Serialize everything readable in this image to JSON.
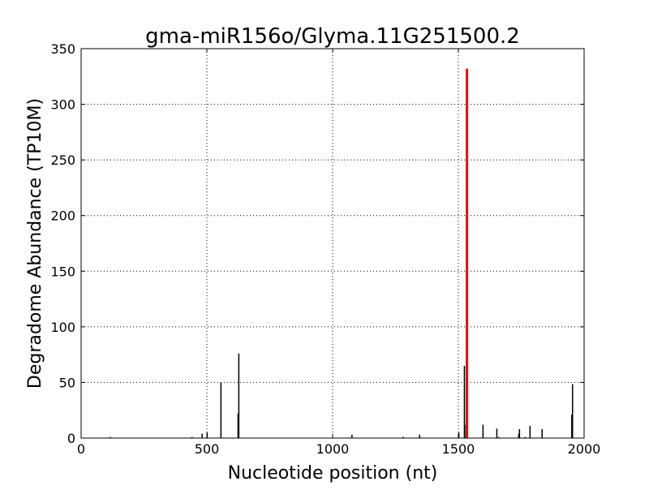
{
  "chart_data": {
    "type": "bar",
    "title": "gma-miR156o/Glyma.11G251500.2",
    "xlabel": "Nucleotide position (nt)",
    "ylabel": "Degradome Abundance (TP10M)",
    "xlim": [
      0,
      2000
    ],
    "ylim": [
      0,
      350
    ],
    "xticks": [
      "0",
      "500",
      "1000",
      "1500",
      "2000"
    ],
    "yticks": [
      "0",
      "50",
      "100",
      "150",
      "200",
      "250",
      "300",
      "350"
    ],
    "grid": true,
    "series": [
      {
        "color": "#000000",
        "x": [
          116,
          441,
          481,
          501,
          556,
          624,
          627,
          1077,
          1280,
          1346,
          1502,
          1524,
          1530,
          1598,
          1653,
          1660,
          1740,
          1743,
          1766,
          1785,
          1833,
          1951,
          1954
        ],
        "y": [
          1,
          1,
          4,
          5,
          50,
          22,
          76,
          3,
          1,
          3,
          5,
          65,
          12,
          12,
          8.5,
          1,
          4,
          8,
          1,
          11,
          8,
          21,
          48.5
        ]
      },
      {
        "color": "#ff0000",
        "x": [
          1534
        ],
        "y": [
          332
        ]
      }
    ]
  }
}
